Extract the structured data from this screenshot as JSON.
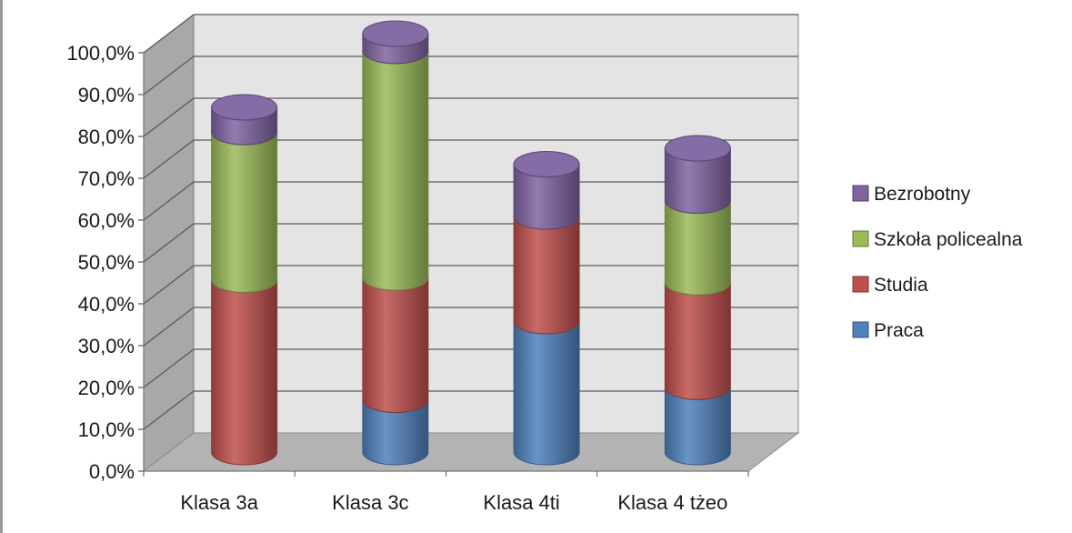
{
  "chart_data": {
    "type": "bar",
    "stacked": true,
    "style": "3d-cylinder",
    "categories": [
      "Klasa 3a",
      "Klasa 3c",
      "Klasa 4ti",
      "Klasa 4 tżeo"
    ],
    "series": [
      {
        "name": "Praca",
        "values": [
          0.0,
          12.5,
          31.3,
          15.6
        ],
        "color": "#4F81BD"
      },
      {
        "name": "Studia",
        "values": [
          41.2,
          29.2,
          25.0,
          25.0
        ],
        "color": "#C0504D"
      },
      {
        "name": "Szkoła policealna",
        "values": [
          35.3,
          54.2,
          0.0,
          19.5
        ],
        "color": "#9BBB59"
      },
      {
        "name": "Bezrobotny",
        "values": [
          5.9,
          4.1,
          12.5,
          12.5
        ],
        "color": "#8064A2"
      }
    ],
    "y_ticks": [
      "0,0%",
      "10,0%",
      "20,0%",
      "30,0%",
      "40,0%",
      "50,0%",
      "60,0%",
      "70,0%",
      "80,0%",
      "90,0%",
      "100,0%"
    ],
    "ylim": [
      0,
      100
    ],
    "grid": true,
    "legend_position": "right",
    "legend_order": [
      "Bezrobotny",
      "Szkoła policealna",
      "Studia",
      "Praca"
    ],
    "title": "",
    "xlabel": "",
    "ylabel": ""
  }
}
